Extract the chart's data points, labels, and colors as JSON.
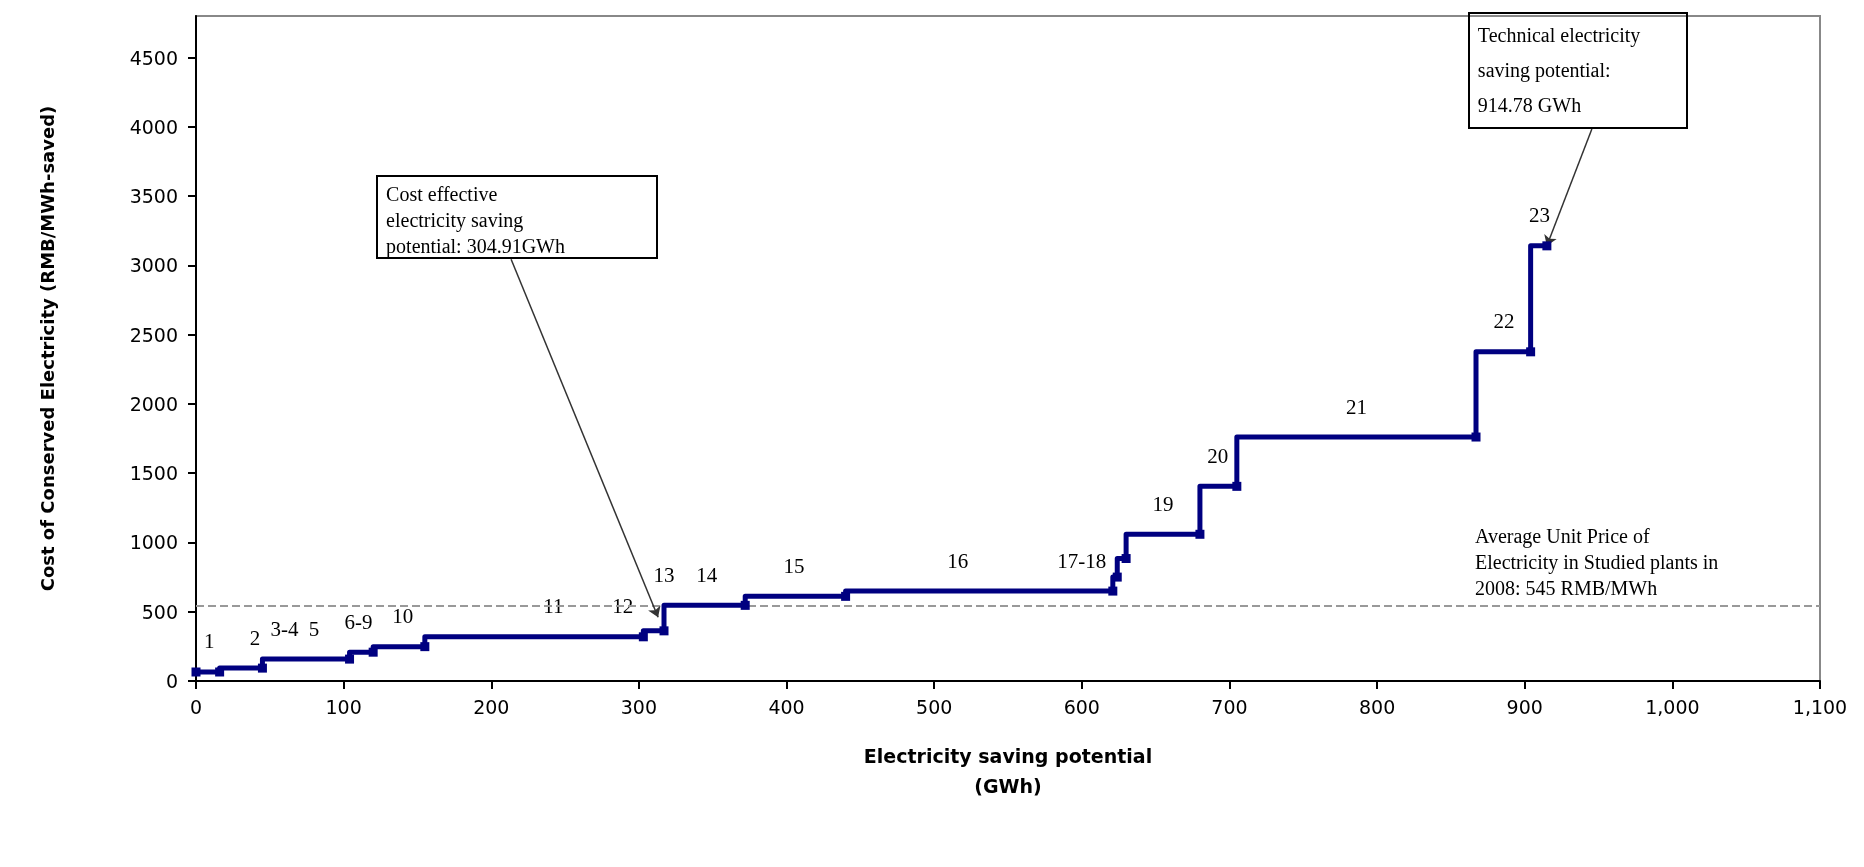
{
  "chart_data": {
    "type": "step",
    "xlabel": "Electricity saving potential\n(GWh)",
    "ylabel": "Cost of Conserved Electricity (RMB/MWh-saved)",
    "x": [
      0,
      16,
      45,
      104,
      120,
      155,
      303,
      317,
      372,
      440,
      621,
      624,
      630,
      680,
      705,
      867,
      904,
      915
    ],
    "series": [
      {
        "color": "#000080",
        "values": [
          65,
          65,
          93,
          158,
          208,
          248,
          319,
          362,
          546,
          611,
          649,
          750,
          884,
          1059,
          1405,
          1761,
          2376,
          3141
        ]
      }
    ],
    "xlim": [
      0,
      1100
    ],
    "xticks": [
      0,
      100,
      200,
      300,
      400,
      500,
      600,
      700,
      800,
      900,
      {
        "value": 1000,
        "label": "1,000"
      },
      {
        "value": 1100,
        "label": "1,100"
      }
    ],
    "ylim": [
      0,
      4800
    ],
    "yticks": [
      0,
      500,
      1000,
      1500,
      2000,
      2500,
      3000,
      3500,
      4000,
      4500
    ],
    "marker": "square",
    "line_style": "solid",
    "grid": false,
    "ref_lines": [
      {
        "axis": "y",
        "value": 545,
        "label": "Average Unit Price of Electricity in Studied plants in 2008: 545 RMB/MWh",
        "color": "#999999",
        "line_style": "dashed"
      }
    ],
    "annotations": [
      {
        "text": "1",
        "x": 9,
        "y": 65
      },
      {
        "text": "2",
        "x": 40,
        "y": 93
      },
      {
        "text": "3-4",
        "x": 60,
        "y": 158
      },
      {
        "text": "5",
        "x": 80,
        "y": 158
      },
      {
        "text": "6-9",
        "x": 110,
        "y": 208
      },
      {
        "text": "10",
        "x": 140,
        "y": 248
      },
      {
        "text": "11",
        "x": 242,
        "y": 319
      },
      {
        "text": "12",
        "x": 289,
        "y": 319
      },
      {
        "text": "13",
        "x": 317,
        "y": 546
      },
      {
        "text": "14",
        "x": 346,
        "y": 546
      },
      {
        "text": "15",
        "x": 405,
        "y": 611
      },
      {
        "text": "16",
        "x": 516,
        "y": 649
      },
      {
        "text": "17-18",
        "x": 600,
        "y": 649
      },
      {
        "text": "19",
        "x": 655,
        "y": 1059
      },
      {
        "text": "20",
        "x": 692,
        "y": 1405
      },
      {
        "text": "21",
        "x": 786,
        "y": 1761
      },
      {
        "text": "22",
        "x": 886,
        "y": 2376
      },
      {
        "text": "23",
        "x": 910,
        "y": 3141
      },
      {
        "text": "Cost effective electricity saving potential: 304.91GWh",
        "x": 313,
        "y": 460
      },
      {
        "text": "Technical electricity saving potential: 914.78 GWh",
        "x": 915,
        "y": 3141
      }
    ]
  }
}
